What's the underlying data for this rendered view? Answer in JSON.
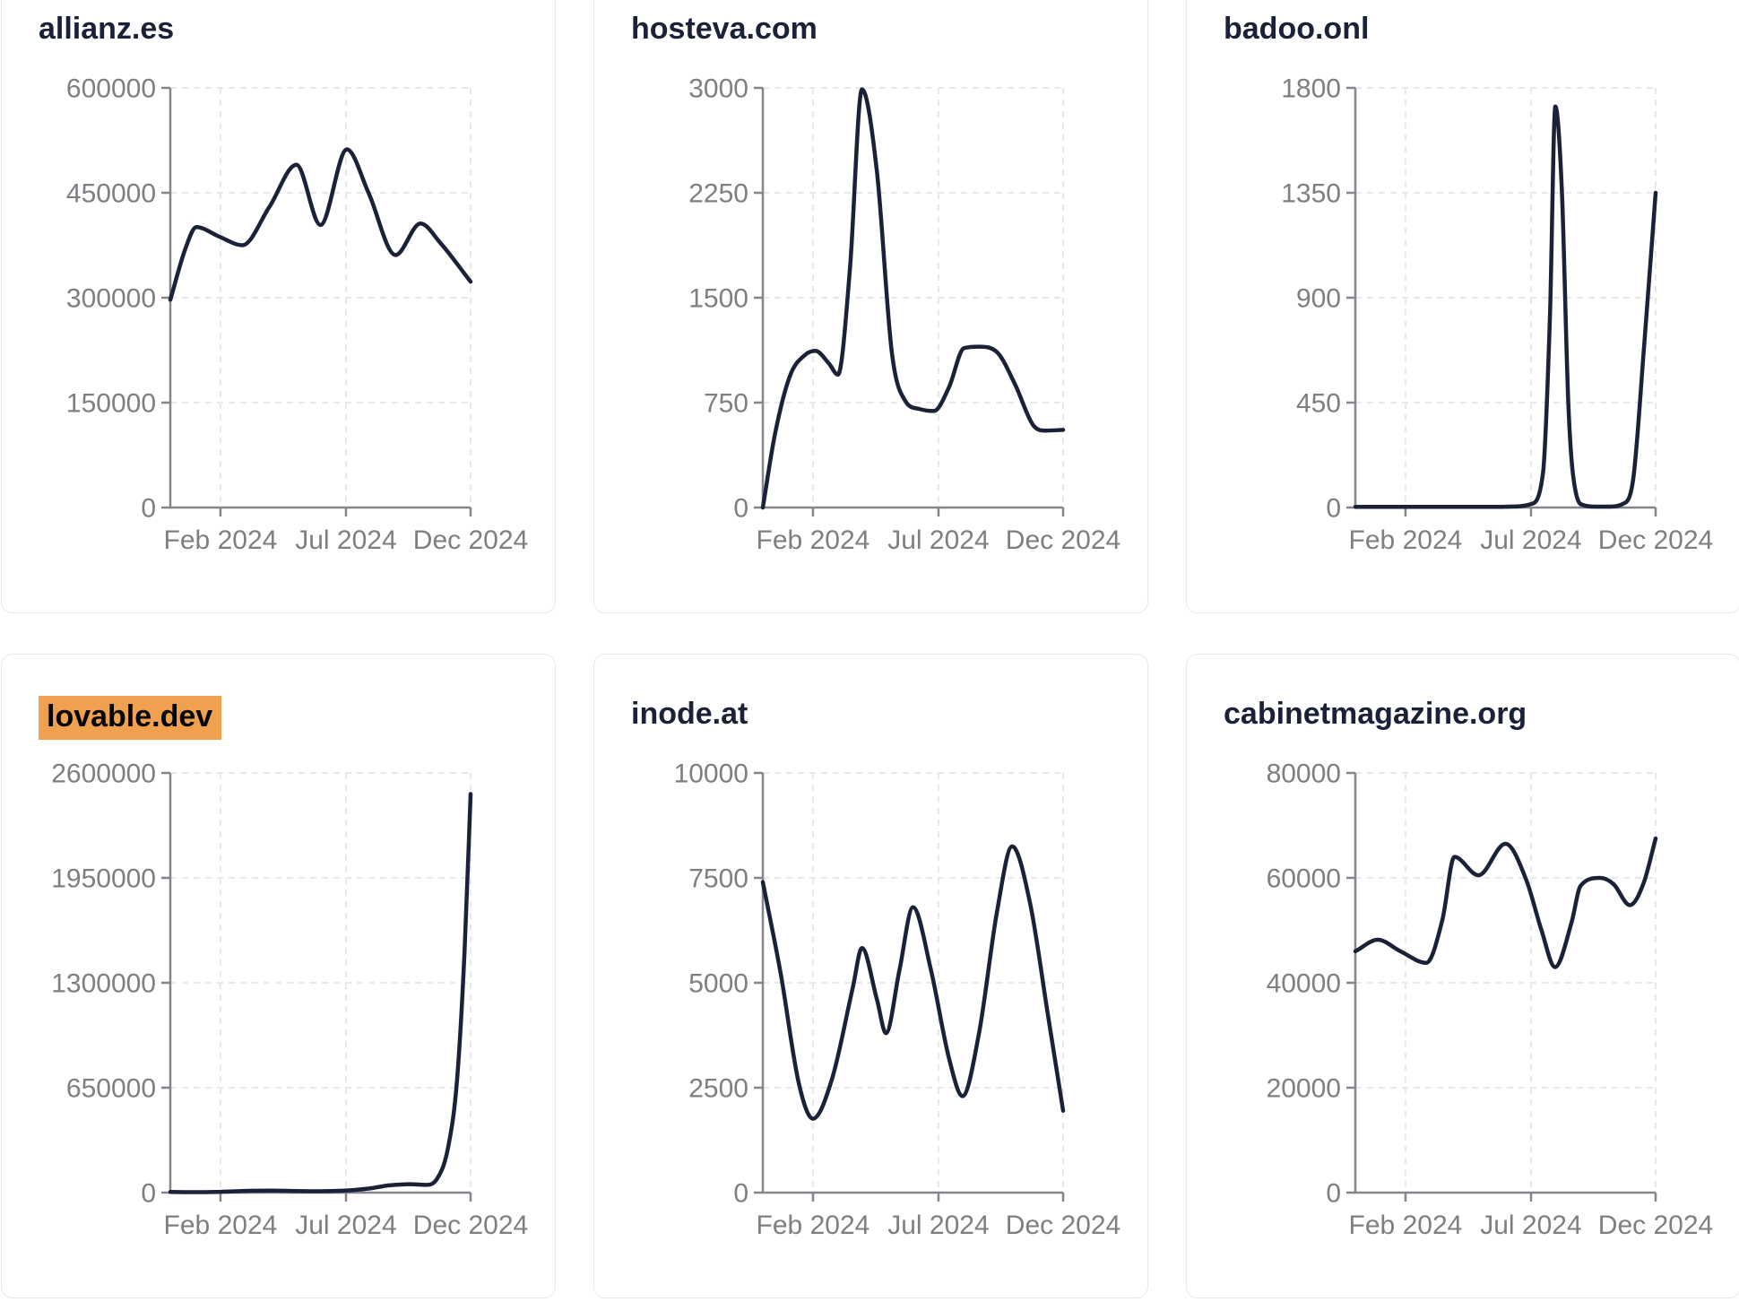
{
  "page": {
    "background": "#ffffff",
    "x_tick_labels": [
      "Feb 2024",
      "Jul 2024",
      "Dec 2024"
    ]
  },
  "style": {
    "line_color": "#1b2137",
    "title_color": "#1b2137",
    "axis_color": "#85858b",
    "grid_color": "#e8e9ed",
    "tick_label_color": "#7e7e83",
    "card_border_color": "#e7e9ee",
    "highlight_color": "#f0a150",
    "highlight_text_color": "#050505"
  },
  "chart_data": [
    {
      "type": "line",
      "title": "allianz.es",
      "highlighted": false,
      "ylim": [
        0,
        600000
      ],
      "y_ticks": [
        0,
        150000,
        300000,
        450000,
        600000
      ],
      "x_ticks": [
        {
          "label": "Feb 2024",
          "pos": 0.167
        },
        {
          "label": "Jul 2024",
          "pos": 0.585
        },
        {
          "label": "Dec 2024",
          "pos": 1.0
        }
      ],
      "x_unit": "fraction of Jan-Dec 2024 axis",
      "points": [
        [
          0,
          297000
        ],
        [
          0.05,
          370000
        ],
        [
          0.087,
          401000
        ],
        [
          0.16,
          388000
        ],
        [
          0.24,
          375000
        ],
        [
          0.33,
          430000
        ],
        [
          0.42,
          490000
        ],
        [
          0.5,
          404000
        ],
        [
          0.588,
          512000
        ],
        [
          0.66,
          450000
        ],
        [
          0.75,
          361000
        ],
        [
          0.833,
          406000
        ],
        [
          0.9,
          378000
        ],
        [
          1,
          323000
        ]
      ]
    },
    {
      "type": "line",
      "title": "hosteva.com",
      "highlighted": false,
      "ylim": [
        0,
        3000
      ],
      "y_ticks": [
        0,
        750,
        1500,
        2250,
        3000
      ],
      "x_ticks": [
        {
          "label": "Feb 2024",
          "pos": 0.167
        },
        {
          "label": "Jul 2024",
          "pos": 0.585
        },
        {
          "label": "Dec 2024",
          "pos": 1.0
        }
      ],
      "x_unit": "fraction of Jan-Dec 2024 axis",
      "points": [
        [
          0,
          0
        ],
        [
          0.04,
          520
        ],
        [
          0.09,
          940
        ],
        [
          0.14,
          1090
        ],
        [
          0.175,
          1120
        ],
        [
          0.22,
          1030
        ],
        [
          0.25,
          950
        ],
        [
          0.29,
          1700
        ],
        [
          0.33,
          2990
        ],
        [
          0.38,
          2400
        ],
        [
          0.43,
          1100
        ],
        [
          0.475,
          760
        ],
        [
          0.52,
          705
        ],
        [
          0.57,
          690
        ],
        [
          0.62,
          860
        ],
        [
          0.67,
          1140
        ],
        [
          0.72,
          1150
        ],
        [
          0.78,
          1110
        ],
        [
          0.84,
          880
        ],
        [
          0.9,
          590
        ],
        [
          0.94,
          550
        ],
        [
          1,
          555
        ]
      ]
    },
    {
      "type": "line",
      "title": "badoo.onl",
      "highlighted": false,
      "ylim": [
        0,
        1800
      ],
      "y_ticks": [
        0,
        450,
        900,
        1350,
        1800
      ],
      "x_ticks": [
        {
          "label": "Feb 2024",
          "pos": 0.167
        },
        {
          "label": "Jul 2024",
          "pos": 0.585
        },
        {
          "label": "Dec 2024",
          "pos": 1.0
        }
      ],
      "x_unit": "fraction of Jan-Dec 2024 axis",
      "points": [
        [
          0,
          3
        ],
        [
          0.1,
          3
        ],
        [
          0.2,
          3
        ],
        [
          0.3,
          3
        ],
        [
          0.4,
          3
        ],
        [
          0.48,
          3
        ],
        [
          0.54,
          5
        ],
        [
          0.585,
          15
        ],
        [
          0.625,
          150
        ],
        [
          0.648,
          820
        ],
        [
          0.666,
          1720
        ],
        [
          0.688,
          1350
        ],
        [
          0.71,
          420
        ],
        [
          0.735,
          60
        ],
        [
          0.76,
          10
        ],
        [
          0.8,
          4
        ],
        [
          0.85,
          4
        ],
        [
          0.89,
          15
        ],
        [
          0.925,
          120
        ],
        [
          0.962,
          700
        ],
        [
          1,
          1350
        ]
      ]
    },
    {
      "type": "line",
      "title": "lovable.dev",
      "highlighted": true,
      "ylim": [
        0,
        2600000
      ],
      "y_ticks": [
        0,
        650000,
        1300000,
        1950000,
        2600000
      ],
      "x_ticks": [
        {
          "label": "Feb 2024",
          "pos": 0.167
        },
        {
          "label": "Jul 2024",
          "pos": 0.585
        },
        {
          "label": "Dec 2024",
          "pos": 1.0
        }
      ],
      "x_unit": "fraction of Jan-Dec 2024 axis",
      "points": [
        [
          0,
          4000
        ],
        [
          0.09,
          2500
        ],
        [
          0.17,
          5000
        ],
        [
          0.26,
          11000
        ],
        [
          0.34,
          13000
        ],
        [
          0.42,
          10000
        ],
        [
          0.5,
          8500
        ],
        [
          0.58,
          12000
        ],
        [
          0.66,
          25000
        ],
        [
          0.73,
          45000
        ],
        [
          0.8,
          52000
        ],
        [
          0.85,
          48000
        ],
        [
          0.89,
          90000
        ],
        [
          0.925,
          280000
        ],
        [
          0.955,
          700000
        ],
        [
          0.98,
          1500000
        ],
        [
          1,
          2470000
        ]
      ]
    },
    {
      "type": "line",
      "title": "inode.at",
      "highlighted": false,
      "ylim": [
        0,
        10000
      ],
      "y_ticks": [
        0,
        2500,
        5000,
        7500,
        10000
      ],
      "x_ticks": [
        {
          "label": "Feb 2024",
          "pos": 0.167
        },
        {
          "label": "Jul 2024",
          "pos": 0.585
        },
        {
          "label": "Dec 2024",
          "pos": 1.0
        }
      ],
      "x_unit": "fraction of Jan-Dec 2024 axis",
      "points": [
        [
          0,
          7400
        ],
        [
          0.06,
          5200
        ],
        [
          0.12,
          2600
        ],
        [
          0.167,
          1760
        ],
        [
          0.23,
          2700
        ],
        [
          0.3,
          4900
        ],
        [
          0.33,
          5830
        ],
        [
          0.38,
          4600
        ],
        [
          0.41,
          3800
        ],
        [
          0.455,
          5300
        ],
        [
          0.5,
          6800
        ],
        [
          0.56,
          5300
        ],
        [
          0.62,
          3200
        ],
        [
          0.665,
          2300
        ],
        [
          0.72,
          3800
        ],
        [
          0.78,
          6700
        ],
        [
          0.83,
          8250
        ],
        [
          0.89,
          6900
        ],
        [
          0.95,
          4200
        ],
        [
          1,
          1950
        ]
      ]
    },
    {
      "type": "line",
      "title": "cabinetmagazine.org",
      "highlighted": false,
      "ylim": [
        0,
        80000
      ],
      "y_ticks": [
        0,
        20000,
        40000,
        60000,
        80000
      ],
      "x_ticks": [
        {
          "label": "Feb 2024",
          "pos": 0.167
        },
        {
          "label": "Jul 2024",
          "pos": 0.585
        },
        {
          "label": "Dec 2024",
          "pos": 1.0
        }
      ],
      "x_unit": "fraction of Jan-Dec 2024 axis",
      "points": [
        [
          0,
          46000
        ],
        [
          0.075,
          48200
        ],
        [
          0.15,
          46000
        ],
        [
          0.236,
          43800
        ],
        [
          0.29,
          52000
        ],
        [
          0.33,
          64000
        ],
        [
          0.41,
          60500
        ],
        [
          0.5,
          66500
        ],
        [
          0.57,
          59500
        ],
        [
          0.62,
          50000
        ],
        [
          0.665,
          43000
        ],
        [
          0.72,
          51500
        ],
        [
          0.75,
          58500
        ],
        [
          0.815,
          60000
        ],
        [
          0.86,
          58800
        ],
        [
          0.914,
          54800
        ],
        [
          0.96,
          59000
        ],
        [
          1,
          67500
        ]
      ]
    }
  ]
}
